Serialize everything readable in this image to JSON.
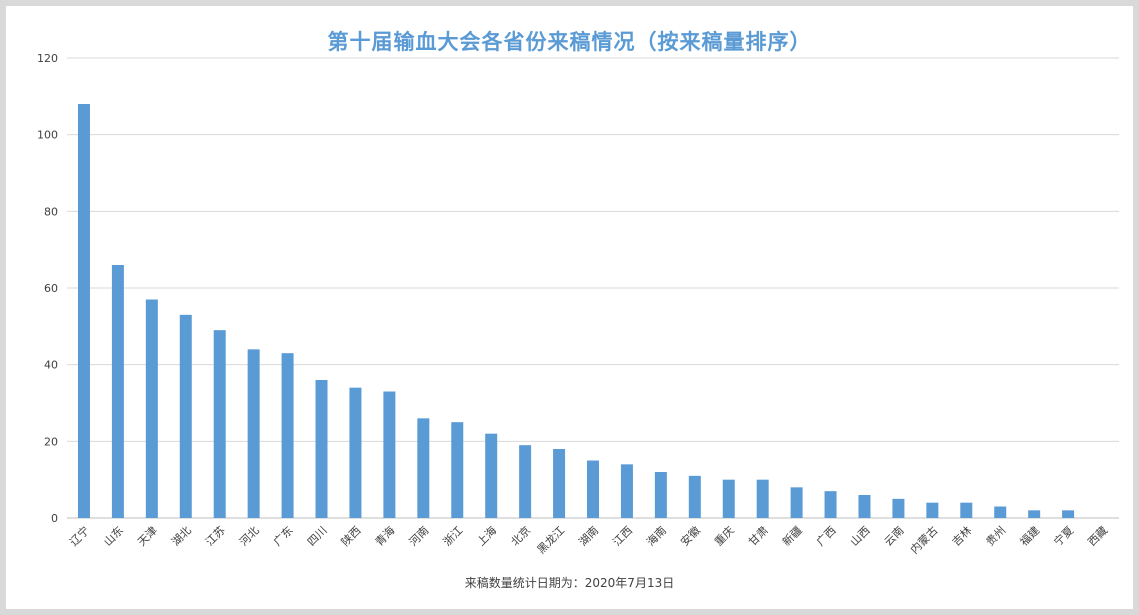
{
  "chart_data": {
    "type": "bar",
    "title": "第十届输血大会各省份来稿情况（按来稿量排序）",
    "footnote": "来稿数量统计日期为：2020年7月13日",
    "xlabel": "",
    "ylabel": "",
    "ylim": [
      0,
      120
    ],
    "yticks": [
      0,
      20,
      40,
      60,
      80,
      100,
      120
    ],
    "grid": true,
    "legend": "none",
    "bar_color": "#5b9bd5",
    "categories": [
      "辽宁",
      "山东",
      "天津",
      "湖北",
      "江苏",
      "河北",
      "广东",
      "四川",
      "陕西",
      "青海",
      "河南",
      "浙江",
      "上海",
      "北京",
      "黑龙江",
      "湖南",
      "江西",
      "海南",
      "安徽",
      "重庆",
      "甘肃",
      "新疆",
      "广西",
      "山西",
      "云南",
      "内蒙古",
      "吉林",
      "贵州",
      "福建",
      "宁夏",
      "西藏"
    ],
    "values": [
      108,
      66,
      57,
      53,
      49,
      44,
      43,
      36,
      34,
      33,
      26,
      25,
      22,
      19,
      18,
      15,
      14,
      12,
      11,
      10,
      10,
      8,
      7,
      6,
      5,
      4,
      4,
      3,
      2,
      2,
      0
    ]
  }
}
